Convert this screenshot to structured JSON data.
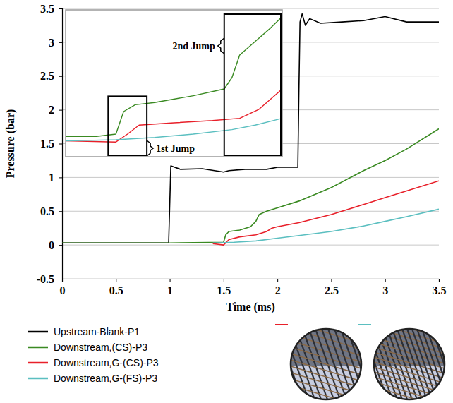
{
  "chart_data": [
    {
      "type": "line",
      "xlabel": "Time (ms)",
      "ylabel": "Pressure (bar)",
      "xlim": [
        0,
        3.5
      ],
      "ylim": [
        -0.5,
        3.5
      ],
      "xticks": [
        0,
        0.5,
        1,
        1.5,
        2,
        2.5,
        3,
        3.5
      ],
      "yticks": [
        -0.5,
        0,
        0.5,
        1,
        1.5,
        2,
        2.5,
        3,
        3.5
      ],
      "grid": true,
      "legend": "bottom",
      "series": [
        {
          "name": "Upstream-Blank-P1",
          "color": "#000000",
          "x": [
            0,
            0.5,
            0.99,
            1.0,
            1.01,
            1.1,
            1.3,
            1.5,
            1.55,
            1.7,
            1.9,
            2.0,
            2.19,
            2.2,
            2.21,
            2.23,
            2.26,
            2.3,
            2.4,
            2.6,
            2.8,
            3.0,
            3.2,
            3.5
          ],
          "values": [
            0.03,
            0.03,
            0.03,
            0.6,
            1.17,
            1.12,
            1.13,
            1.08,
            1.1,
            1.12,
            1.12,
            1.15,
            1.15,
            2.3,
            3.3,
            3.42,
            3.25,
            3.35,
            3.28,
            3.3,
            3.32,
            3.38,
            3.3,
            3.3
          ]
        },
        {
          "name": "Downstream,(CS)-P3",
          "color": "#3a8a22",
          "x": [
            0,
            0.5,
            1.0,
            1.5,
            1.52,
            1.55,
            1.65,
            1.75,
            1.8,
            1.83,
            1.9,
            2.0,
            2.2,
            2.5,
            2.8,
            3.0,
            3.2,
            3.5
          ],
          "values": [
            0.03,
            0.03,
            0.03,
            0.04,
            0.15,
            0.2,
            0.22,
            0.27,
            0.35,
            0.45,
            0.5,
            0.55,
            0.65,
            0.85,
            1.1,
            1.25,
            1.42,
            1.72
          ]
        },
        {
          "name": "Downstream,G-(CS)-P3",
          "color": "#e8202a",
          "x": [
            1.4,
            1.5,
            1.55,
            1.65,
            1.8,
            1.9,
            1.95,
            2.0,
            2.2,
            2.5,
            2.8,
            3.0,
            3.2,
            3.5
          ],
          "values": [
            0.02,
            0.0,
            0.08,
            0.12,
            0.15,
            0.2,
            0.25,
            0.27,
            0.33,
            0.45,
            0.6,
            0.7,
            0.8,
            0.95
          ]
        },
        {
          "name": "Downstream,G-(FS)-P3",
          "color": "#5bbfc0",
          "x": [
            1.4,
            1.6,
            1.8,
            2.0,
            2.2,
            2.5,
            2.8,
            3.0,
            3.2,
            3.5
          ],
          "values": [
            0.03,
            0.04,
            0.06,
            0.1,
            0.14,
            0.2,
            0.28,
            0.35,
            0.42,
            0.53
          ]
        }
      ]
    },
    {
      "type": "line",
      "tick_labels": false,
      "xlim": [
        1.37,
        1.93
      ],
      "ylim": [
        -0.07,
        0.58
      ],
      "annotations": [
        {
          "text": "1st Jump",
          "x": [
            1.48,
            1.58
          ]
        },
        {
          "text": "2nd Jump",
          "x": [
            1.78,
            1.93
          ]
        }
      ],
      "series": [
        {
          "color": "#3a8a22",
          "x": [
            1.37,
            1.45,
            1.5,
            1.52,
            1.55,
            1.6,
            1.7,
            1.78,
            1.8,
            1.82,
            1.86,
            1.9,
            1.93
          ],
          "values": [
            0.02,
            0.02,
            0.03,
            0.13,
            0.16,
            0.17,
            0.2,
            0.23,
            0.28,
            0.38,
            0.44,
            0.5,
            0.55
          ]
        },
        {
          "color": "#e8202a",
          "x": [
            1.37,
            1.5,
            1.53,
            1.56,
            1.65,
            1.75,
            1.82,
            1.87,
            1.93
          ],
          "values": [
            0.0,
            -0.005,
            0.03,
            0.07,
            0.08,
            0.09,
            0.1,
            0.14,
            0.23
          ]
        },
        {
          "color": "#5bbfc0",
          "x": [
            1.37,
            1.5,
            1.6,
            1.7,
            1.8,
            1.86,
            1.93
          ],
          "values": [
            0.0,
            0.005,
            0.015,
            0.03,
            0.05,
            0.07,
            0.1
          ]
        }
      ]
    }
  ]
}
